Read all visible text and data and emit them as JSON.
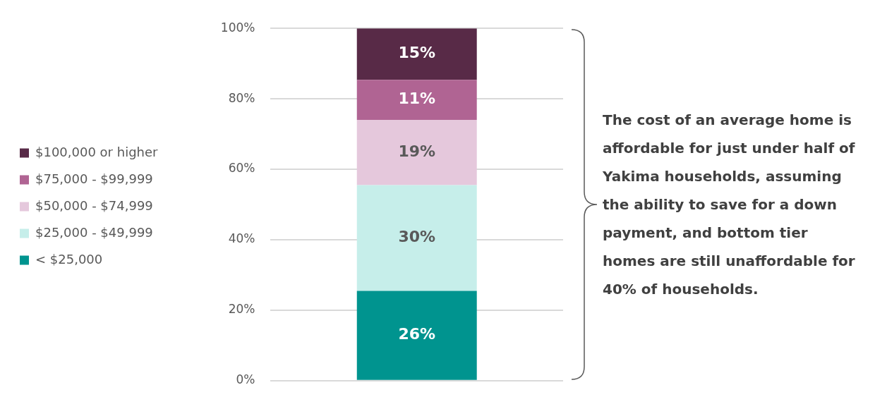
{
  "chart_data": {
    "type": "bar",
    "stacked": true,
    "categories": [
      null
    ],
    "series": [
      {
        "name": "< $25,000",
        "color": "#00948f",
        "values": [
          25.5
        ],
        "value_labels": [
          "26%"
        ]
      },
      {
        "name": "$25,000 - $49,999",
        "color": "#c6eeea",
        "values": [
          30.0
        ],
        "value_labels": [
          "30%"
        ]
      },
      {
        "name": "$50,000 - $74,999",
        "color": "#e5c8dc",
        "values": [
          18.5
        ],
        "value_labels": [
          "19%"
        ]
      },
      {
        "name": "$75,000 - $99,999",
        "color": "#b06493",
        "values": [
          11.4
        ],
        "value_labels": [
          "11%"
        ]
      },
      {
        "name": "$100,000 or higher",
        "color": "#582a47",
        "values": [
          14.6
        ],
        "value_labels": [
          "15%"
        ]
      }
    ],
    "ylim": [
      0,
      100
    ],
    "yticks": [
      {
        "value": 0,
        "label": "0%"
      },
      {
        "value": 20,
        "label": "20%"
      },
      {
        "value": 40,
        "label": "40%"
      },
      {
        "value": 60,
        "label": "60%"
      },
      {
        "value": 80,
        "label": "80%"
      },
      {
        "value": 100,
        "label": "100%"
      }
    ],
    "grid": "y",
    "legend": "left",
    "annotations": [
      "The cost of an average home is affordable for just under half of Yakima households, assuming the ability to save for a down payment, and bottom tier homes are still unaffordable for 40% of households."
    ]
  }
}
